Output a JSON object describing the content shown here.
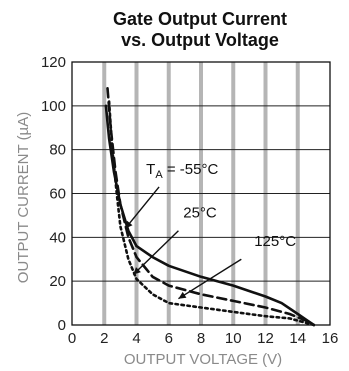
{
  "chart_data": {
    "type": "line",
    "title": "Gate Output Current",
    "subtitle": "vs. Output Voltage",
    "xlabel": "OUTPUT VOLTAGE (V)",
    "ylabel": "OUTPUT CURRENT (µA)",
    "xlim": [
      0,
      16
    ],
    "ylim": [
      0,
      120
    ],
    "xticks": [
      "0",
      "2",
      "4",
      "6",
      "8",
      "10",
      "12",
      "14",
      "16"
    ],
    "yticks": [
      "0",
      "20",
      "40",
      "60",
      "80",
      "100",
      "120"
    ],
    "grid": true,
    "series": [
      {
        "name": "-55°C",
        "style": "solid",
        "x": [
          2.1,
          2.3,
          2.6,
          3.0,
          3.5,
          4.0,
          5.0,
          6.0,
          8.0,
          10.0,
          12.0,
          13.0,
          14.0,
          14.6,
          15.0
        ],
        "y": [
          100,
          85,
          70,
          55,
          43,
          36,
          31,
          27,
          22,
          18,
          13,
          10,
          5,
          2,
          0
        ]
      },
      {
        "name": "25°C",
        "style": "dashed",
        "x": [
          2.2,
          2.4,
          2.7,
          3.0,
          3.5,
          4.0,
          5.0,
          6.0,
          8.0,
          10.0,
          12.0,
          13.5,
          14.5,
          15.0
        ],
        "y": [
          108,
          90,
          70,
          55,
          40,
          31,
          22,
          18,
          14,
          11,
          8,
          5,
          2,
          0
        ]
      },
      {
        "name": "125°C",
        "style": "dotted",
        "x": [
          2.3,
          2.5,
          2.8,
          3.0,
          3.5,
          4.0,
          5.0,
          6.0,
          8.0,
          10.0,
          12.0,
          13.5,
          14.5,
          15.0
        ],
        "y": [
          102,
          80,
          58,
          45,
          30,
          21,
          14,
          10,
          8,
          6,
          4,
          3,
          1,
          0
        ]
      }
    ],
    "annotations": [
      {
        "text_pre": "T",
        "subscript": "A",
        "text": " = -55°C",
        "series": "-55°C"
      },
      {
        "text": "25°C",
        "series": "25°C"
      },
      {
        "text": "125°C",
        "series": "125°C"
      }
    ]
  }
}
